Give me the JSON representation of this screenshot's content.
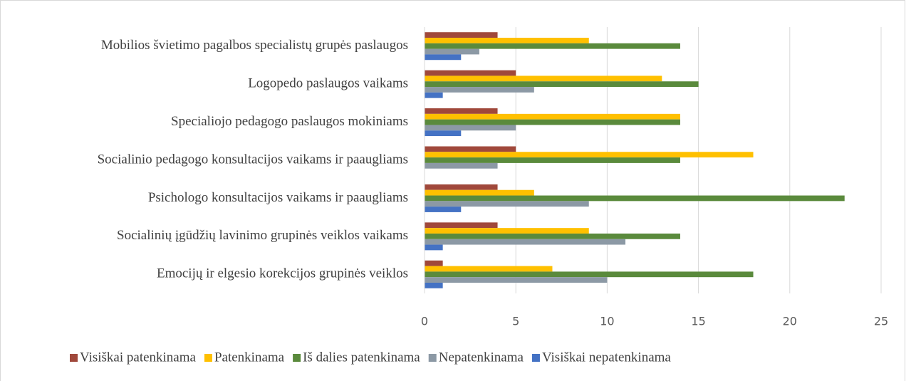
{
  "chart_data": {
    "type": "hbar",
    "categories": [
      "Mobilios švietimo pagalbos specialistų  grupės paslaugos",
      "Logopedo paslaugos vaikams",
      "Specialiojo pedagogo paslaugos mokiniams",
      "Socialinio pedagogo konsultacijos vaikams ir paaugliams",
      "Psichologo konsultacijos vaikams ir paaugliams",
      "Socialinių įgūdžių lavinimo grupinės veiklos vaikams",
      "Emocijų ir elgesio korekcijos grupinės veiklos"
    ],
    "series": [
      {
        "name": "Visiškai patenkinama",
        "color": "#a0483b",
        "values": [
          4,
          5,
          4,
          5,
          4,
          4,
          1
        ]
      },
      {
        "name": "Patenkinama",
        "color": "#ffc000",
        "values": [
          9,
          13,
          14,
          18,
          6,
          9,
          7
        ]
      },
      {
        "name": "Iš dalies patenkinama",
        "color": "#5a8a3c",
        "values": [
          14,
          15,
          14,
          14,
          23,
          14,
          18
        ]
      },
      {
        "name": "Nepatenkinama",
        "color": "#8c99a5",
        "values": [
          3,
          6,
          5,
          4,
          9,
          11,
          10
        ]
      },
      {
        "name": "Visiškai nepatenkinama",
        "color": "#4472c4",
        "values": [
          2,
          1,
          2,
          0,
          2,
          1,
          1
        ]
      }
    ],
    "xlim": [
      0,
      25
    ],
    "xticks": [
      0,
      5,
      10,
      15,
      20,
      25
    ],
    "grid": true,
    "legend": "bottom"
  }
}
